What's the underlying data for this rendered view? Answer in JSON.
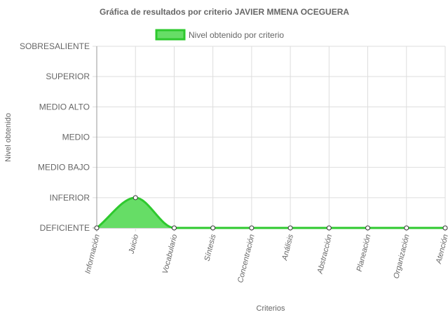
{
  "chart_data": {
    "type": "area",
    "title": "Gráfica de resultados por criterio JAVIER MMENA OCEGUERA",
    "xlabel": "Criterios",
    "ylabel": "Nivel obtenido",
    "y_levels": [
      "DEFICIENTE",
      "INFERIOR",
      "MEDIO BAJO",
      "MEDIO",
      "MEDIO ALTO",
      "SUPERIOR",
      "SOBRESALIENTE"
    ],
    "categories": [
      "Información",
      "Juicio",
      "Vocabulario",
      "Síntesis",
      "Concentración",
      "Análisis",
      "Abstracción",
      "Planeación",
      "Organización",
      "Atención"
    ],
    "series": [
      {
        "name": "Nivel obtenido por criterio",
        "values": [
          0,
          1,
          0,
          0,
          0,
          0,
          0,
          0,
          0,
          0
        ]
      }
    ],
    "colors": {
      "line": "#2ec92e",
      "fill": "#66dd66",
      "grid": "#dddddd",
      "axis": "#999999"
    },
    "grid": true,
    "legend_position": "top"
  }
}
